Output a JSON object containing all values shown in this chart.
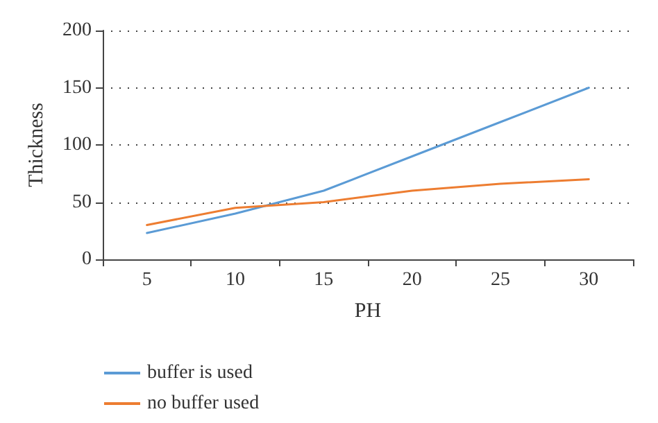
{
  "chart_data": {
    "type": "line",
    "xlabel": "PH",
    "ylabel": "Thickness",
    "categories": [
      "5",
      "10",
      "15",
      "20",
      "25",
      "30"
    ],
    "series": [
      {
        "name": "buffer is used",
        "color": "#5b9bd5",
        "values": [
          23,
          40,
          60,
          90,
          120,
          150
        ]
      },
      {
        "name": "no buffer used",
        "color": "#ed7d31",
        "values": [
          30,
          45,
          50,
          60,
          66,
          70
        ]
      }
    ],
    "ylim": [
      0,
      200
    ],
    "yticks": [
      0,
      50,
      100,
      150,
      200
    ],
    "grid": "y",
    "legend": "bottom left",
    "marker": "none",
    "line_style": "solid"
  }
}
